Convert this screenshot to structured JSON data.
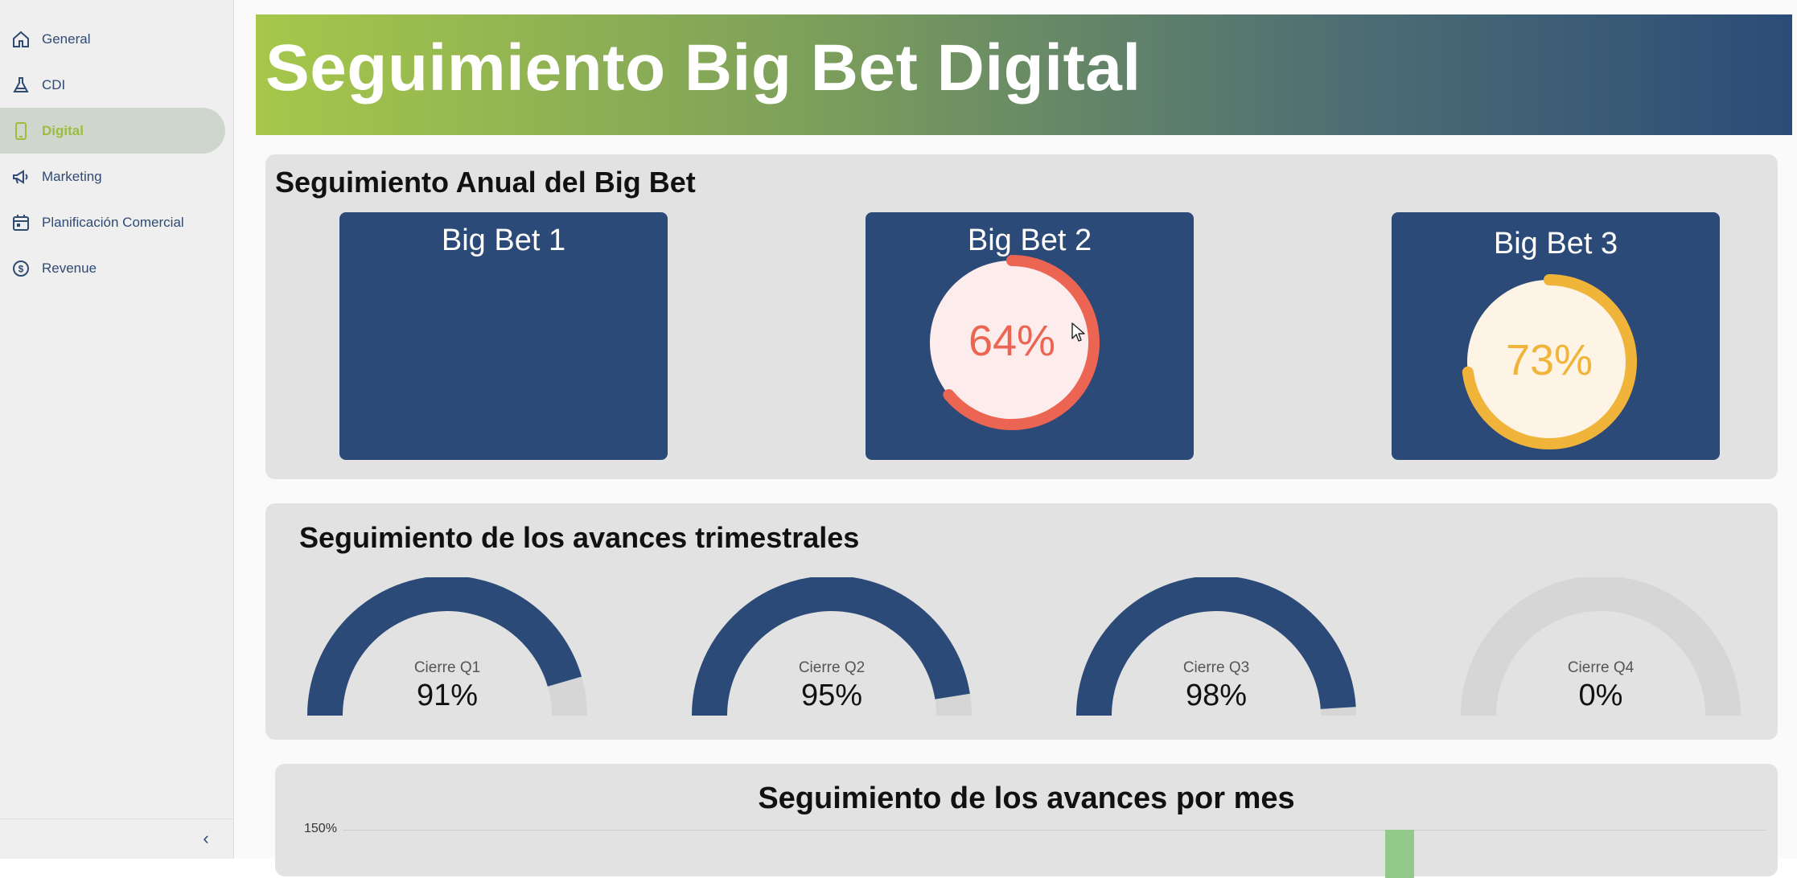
{
  "sidebar": {
    "items": [
      {
        "label": "General",
        "icon": "home-icon",
        "active": false
      },
      {
        "label": "CDI",
        "icon": "flask-icon",
        "active": false
      },
      {
        "label": "Digital",
        "icon": "phone-icon",
        "active": true
      },
      {
        "label": "Marketing",
        "icon": "megaphone-icon",
        "active": false
      },
      {
        "label": "Planificación Comercial",
        "icon": "calendar-icon",
        "active": false
      },
      {
        "label": "Revenue",
        "icon": "dollar-coin-icon",
        "active": false
      }
    ],
    "collapse_label": "‹"
  },
  "banner": {
    "title": "Seguimiento Big Bet Digital"
  },
  "annual": {
    "title": "Seguimiento Anual del Big Bet",
    "big_bets": [
      {
        "title": "Big Bet 1",
        "value": null,
        "value_label": "",
        "color": ""
      },
      {
        "title": "Big Bet 2",
        "value": 0.64,
        "value_label": "64%",
        "color": "#ec6452"
      },
      {
        "title": "Big Bet 3",
        "value": 0.73,
        "value_label": "73%",
        "color": "#f1b43a"
      }
    ]
  },
  "quarterly": {
    "title": "Seguimiento de los avances trimestrales",
    "gauges": [
      {
        "label": "Cierre Q1",
        "value": 0.91,
        "value_label": "91%"
      },
      {
        "label": "Cierre Q2",
        "value": 0.95,
        "value_label": "95%"
      },
      {
        "label": "Cierre Q3",
        "value": 0.98,
        "value_label": "98%"
      },
      {
        "label": "Cierre Q4",
        "value": 0.0,
        "value_label": "0%"
      }
    ],
    "fill_color": "#2c4a78",
    "track_color": "#d6d6d6"
  },
  "monthly": {
    "title": "Seguimiento de los avances por mes",
    "y_top_label": "150%",
    "bar_color": "#93c98a"
  }
}
